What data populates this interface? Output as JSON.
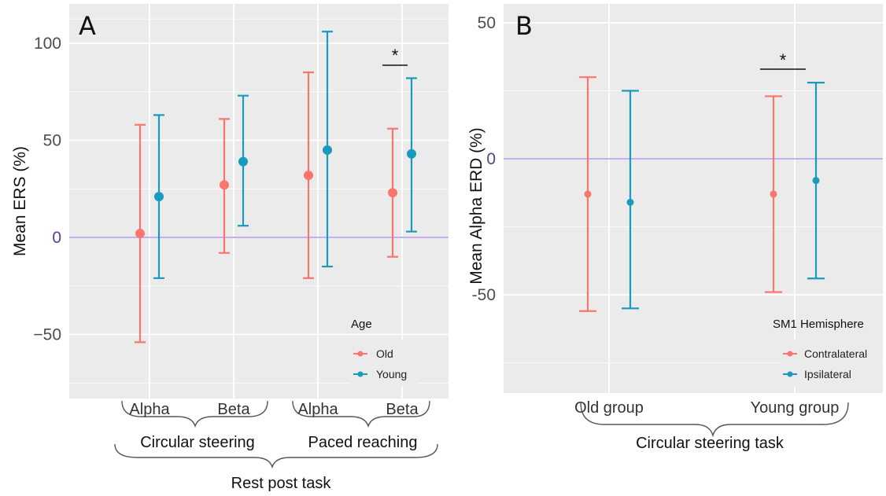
{
  "colors": {
    "old": "#f8766d",
    "young": "#1a9bbd",
    "zero_line": "#c5b0e8",
    "panel_bg": "#ebebeb",
    "grid": "#ffffff"
  },
  "chart_data": [
    {
      "type": "errorbar",
      "panel_label": "A",
      "ylabel": "Mean ERS (%)",
      "ylim": [
        -78,
        120
      ],
      "y_ticks": [
        -50,
        0,
        50,
        100
      ],
      "y_tick_labels": [
        "−50",
        "0",
        "50",
        "100"
      ],
      "categories": [
        "Alpha",
        "Beta",
        "Alpha",
        "Beta"
      ],
      "category_groups": [
        {
          "label": "Circular steering",
          "span": [
            0,
            1
          ]
        },
        {
          "label": "Paced reaching",
          "span": [
            2,
            3
          ]
        }
      ],
      "outer_group_label": "Rest post task",
      "legend": {
        "title": "Age",
        "position": "bottom-right"
      },
      "reference_line": 0,
      "grid": true,
      "series": [
        {
          "name": "Old",
          "color_key": "old",
          "mean": [
            2,
            27,
            32,
            23
          ],
          "lower": [
            -54,
            -8,
            -21,
            -10
          ],
          "upper": [
            58,
            61,
            85,
            56
          ]
        },
        {
          "name": "Young",
          "color_key": "young",
          "mean": [
            21,
            39,
            45,
            43
          ],
          "lower": [
            -21,
            6,
            -15,
            3
          ],
          "upper": [
            63,
            73,
            106,
            82
          ]
        }
      ],
      "significance": [
        {
          "category": 3,
          "label": "*"
        }
      ]
    },
    {
      "type": "errorbar",
      "panel_label": "B",
      "ylabel": "Mean Alpha ERD (%)",
      "ylim": [
        -80,
        55
      ],
      "y_ticks": [
        -50,
        0,
        50
      ],
      "y_tick_labels": [
        "-50",
        "0",
        "50"
      ],
      "categories": [
        "Old group",
        "Young group"
      ],
      "outer_group_label": "Circular steering task",
      "legend": {
        "title": "SM1 Hemisphere",
        "position": "bottom-right"
      },
      "reference_line": 0,
      "grid": true,
      "series": [
        {
          "name": "Contralateral",
          "color_key": "old",
          "mean": [
            -13,
            -13
          ],
          "lower": [
            -56,
            -49
          ],
          "upper": [
            30,
            23
          ]
        },
        {
          "name": "Ipsilateral",
          "color_key": "young",
          "mean": [
            -16,
            -8
          ],
          "lower": [
            -55,
            -44
          ],
          "upper": [
            25,
            28
          ]
        }
      ],
      "significance": [
        {
          "category": 1,
          "label": "*"
        }
      ]
    }
  ]
}
